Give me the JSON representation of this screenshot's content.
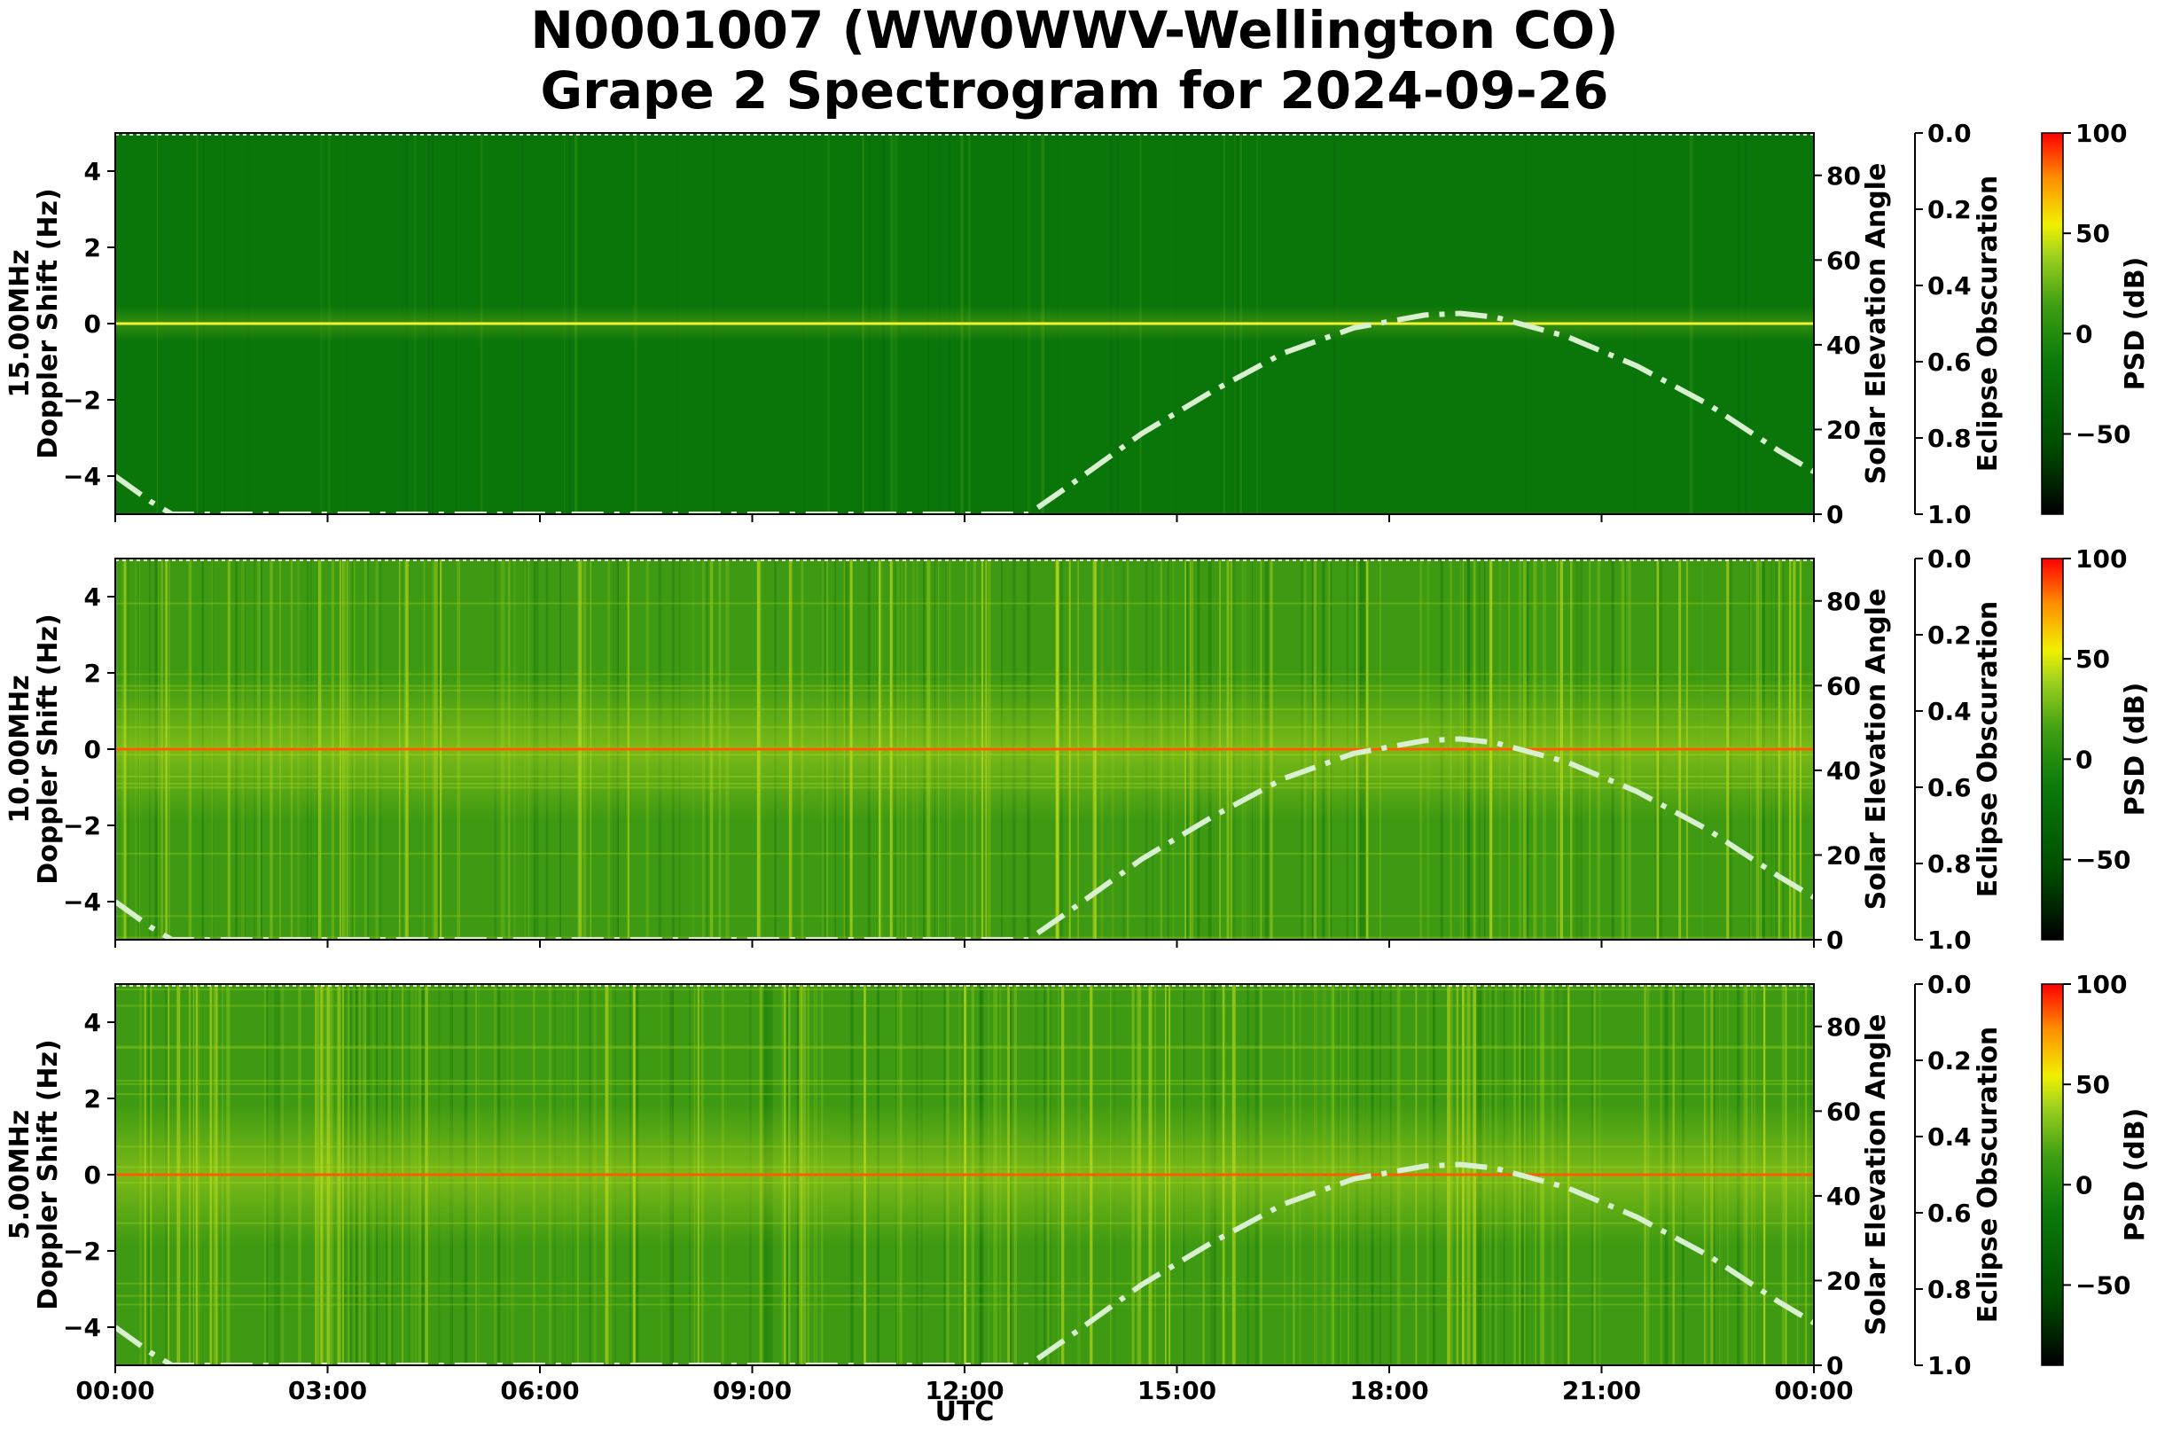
{
  "title_line1": "N0001007 (WW0WWV-Wellington CO)",
  "title_line2": "Grape 2 Spectrogram for 2024-09-26",
  "x_axis": {
    "label": "UTC",
    "ticks": [
      "00:00",
      "03:00",
      "06:00",
      "09:00",
      "12:00",
      "15:00",
      "18:00",
      "21:00",
      "00:00"
    ]
  },
  "colors": {
    "background_green": "#0a7a0a",
    "tone_line": "#f5f032",
    "solar_curve": "#d8f0d0",
    "colormap": [
      "#000000",
      "#004d00",
      "#0a7a0a",
      "#3f9f12",
      "#9fd21e",
      "#f0f000",
      "#ff9000",
      "#ff0000"
    ]
  },
  "chart_data": [
    {
      "type": "heatmap",
      "panel": "15.00MHz",
      "ylabel_line1": "15.00MHz",
      "ylabel_line2": "Doppler Shift (Hz)",
      "y_ticks": [
        "4",
        "2",
        "0",
        "−2",
        "−4"
      ],
      "ylim": [
        -5,
        5
      ],
      "xlim_hours": [
        0,
        24
      ],
      "right_axis_label": "Solar Elevation Angle",
      "right_ticks": [
        "80",
        "60",
        "40",
        "20",
        "0"
      ],
      "right_ylim": [
        0,
        90
      ],
      "eclipse_label": "Eclipse Obscuration",
      "eclipse_ticks": [
        "0.0",
        "0.2",
        "0.4",
        "0.6",
        "0.8",
        "1.0"
      ],
      "colorbar_label": "PSD (dB)",
      "colorbar_ticks": [
        "100",
        "50",
        "0",
        "−50"
      ],
      "colorbar_range": [
        -90,
        100
      ],
      "background_level": "dark-green",
      "tone_doppler_hz": 0,
      "solar_elevation": {
        "hours": [
          0,
          0.5,
          0.8,
          12.9,
          13.5,
          14.5,
          15.5,
          16.5,
          17.5,
          18.5,
          19.0,
          19.5,
          20.5,
          21.5,
          22.5,
          23.5,
          24.0
        ],
        "degrees": [
          9,
          3,
          0,
          0,
          7,
          19,
          29,
          38,
          44,
          47,
          47.4,
          46.5,
          42,
          35,
          26,
          15,
          10
        ]
      }
    },
    {
      "type": "heatmap",
      "panel": "10.00MHz",
      "ylabel_line1": "10.00MHz",
      "ylabel_line2": "Doppler Shift (Hz)",
      "y_ticks": [
        "4",
        "2",
        "0",
        "−2",
        "−4"
      ],
      "ylim": [
        -5,
        5
      ],
      "xlim_hours": [
        0,
        24
      ],
      "right_axis_label": "Solar Elevation Angle",
      "right_ticks": [
        "80",
        "60",
        "40",
        "20",
        "0"
      ],
      "right_ylim": [
        0,
        90
      ],
      "eclipse_label": "Eclipse Obscuration",
      "eclipse_ticks": [
        "0.0",
        "0.2",
        "0.4",
        "0.6",
        "0.8",
        "1.0"
      ],
      "colorbar_label": "PSD (dB)",
      "colorbar_ticks": [
        "100",
        "50",
        "0",
        "−50"
      ],
      "colorbar_range": [
        -90,
        100
      ],
      "background_level": "medium-green",
      "tone_doppler_hz": 0,
      "solar_elevation": {
        "hours": [
          0,
          0.5,
          0.8,
          12.9,
          13.5,
          14.5,
          15.5,
          16.5,
          17.5,
          18.5,
          19.0,
          19.5,
          20.5,
          21.5,
          22.5,
          23.5,
          24.0
        ],
        "degrees": [
          9,
          3,
          0,
          0,
          7,
          19,
          29,
          38,
          44,
          47,
          47.4,
          46.5,
          42,
          35,
          26,
          15,
          10
        ]
      }
    },
    {
      "type": "heatmap",
      "panel": "5.00MHz",
      "ylabel_line1": "5.00MHz",
      "ylabel_line2": "Doppler Shift (Hz)",
      "y_ticks": [
        "4",
        "2",
        "0",
        "−2",
        "−4"
      ],
      "ylim": [
        -5,
        5
      ],
      "xlim_hours": [
        0,
        24
      ],
      "right_axis_label": "Solar Elevation Angle",
      "right_ticks": [
        "80",
        "60",
        "40",
        "20",
        "0"
      ],
      "right_ylim": [
        0,
        90
      ],
      "eclipse_label": "Eclipse Obscuration",
      "eclipse_ticks": [
        "0.0",
        "0.2",
        "0.4",
        "0.6",
        "0.8",
        "1.0"
      ],
      "colorbar_label": "PSD (dB)",
      "colorbar_ticks": [
        "100",
        "50",
        "0",
        "−50"
      ],
      "colorbar_range": [
        -90,
        100
      ],
      "background_level": "medium-green",
      "tone_doppler_hz": 0,
      "solar_elevation": {
        "hours": [
          0,
          0.5,
          0.8,
          12.9,
          13.5,
          14.5,
          15.5,
          16.5,
          17.5,
          18.5,
          19.0,
          19.5,
          20.5,
          21.5,
          22.5,
          23.5,
          24.0
        ],
        "degrees": [
          9,
          3,
          0,
          0,
          7,
          19,
          29,
          38,
          44,
          47,
          47.4,
          46.5,
          42,
          35,
          26,
          15,
          10
        ]
      }
    }
  ]
}
